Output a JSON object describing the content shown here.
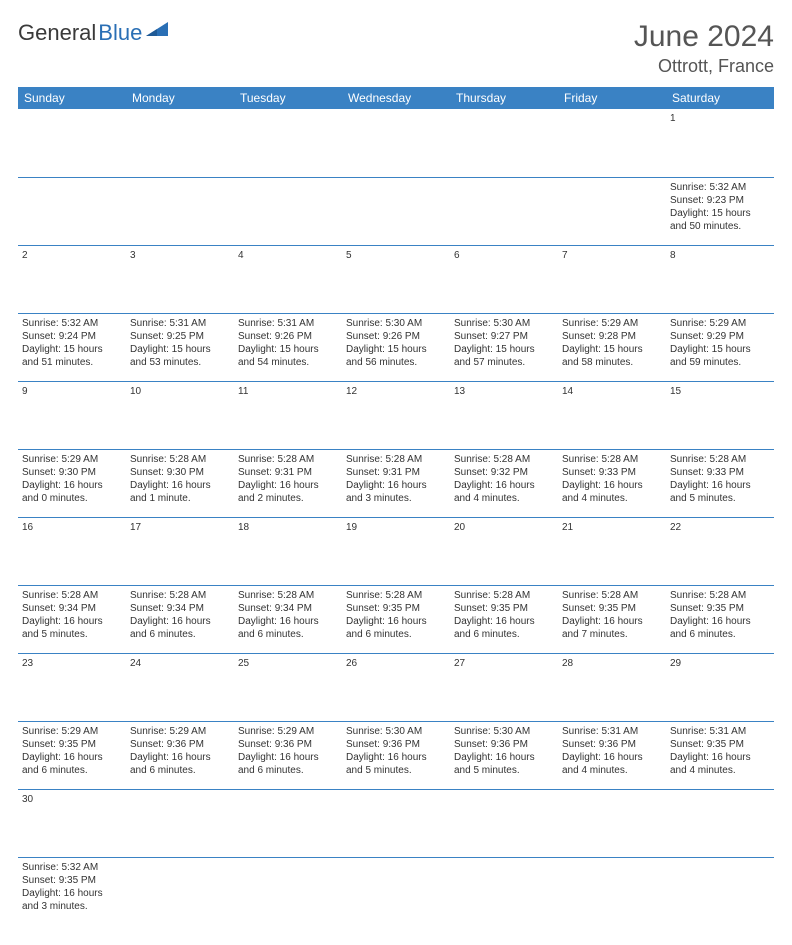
{
  "brand": {
    "part1": "General",
    "part2": "Blue"
  },
  "title": "June 2024",
  "location": "Ottrott, France",
  "colors": {
    "header_bg": "#3a82c4",
    "header_text": "#ffffff",
    "daynum_bg": "#ebebeb",
    "cell_border": "#3a82c4",
    "brand_blue": "#2a6fb5",
    "text": "#333333"
  },
  "weekdays": [
    "Sunday",
    "Monday",
    "Tuesday",
    "Wednesday",
    "Thursday",
    "Friday",
    "Saturday"
  ],
  "weeks": [
    [
      null,
      null,
      null,
      null,
      null,
      null,
      {
        "n": "1",
        "sr": "Sunrise: 5:32 AM",
        "ss": "Sunset: 9:23 PM",
        "dl": "Daylight: 15 hours and 50 minutes."
      }
    ],
    [
      {
        "n": "2",
        "sr": "Sunrise: 5:32 AM",
        "ss": "Sunset: 9:24 PM",
        "dl": "Daylight: 15 hours and 51 minutes."
      },
      {
        "n": "3",
        "sr": "Sunrise: 5:31 AM",
        "ss": "Sunset: 9:25 PM",
        "dl": "Daylight: 15 hours and 53 minutes."
      },
      {
        "n": "4",
        "sr": "Sunrise: 5:31 AM",
        "ss": "Sunset: 9:26 PM",
        "dl": "Daylight: 15 hours and 54 minutes."
      },
      {
        "n": "5",
        "sr": "Sunrise: 5:30 AM",
        "ss": "Sunset: 9:26 PM",
        "dl": "Daylight: 15 hours and 56 minutes."
      },
      {
        "n": "6",
        "sr": "Sunrise: 5:30 AM",
        "ss": "Sunset: 9:27 PM",
        "dl": "Daylight: 15 hours and 57 minutes."
      },
      {
        "n": "7",
        "sr": "Sunrise: 5:29 AM",
        "ss": "Sunset: 9:28 PM",
        "dl": "Daylight: 15 hours and 58 minutes."
      },
      {
        "n": "8",
        "sr": "Sunrise: 5:29 AM",
        "ss": "Sunset: 9:29 PM",
        "dl": "Daylight: 15 hours and 59 minutes."
      }
    ],
    [
      {
        "n": "9",
        "sr": "Sunrise: 5:29 AM",
        "ss": "Sunset: 9:30 PM",
        "dl": "Daylight: 16 hours and 0 minutes."
      },
      {
        "n": "10",
        "sr": "Sunrise: 5:28 AM",
        "ss": "Sunset: 9:30 PM",
        "dl": "Daylight: 16 hours and 1 minute."
      },
      {
        "n": "11",
        "sr": "Sunrise: 5:28 AM",
        "ss": "Sunset: 9:31 PM",
        "dl": "Daylight: 16 hours and 2 minutes."
      },
      {
        "n": "12",
        "sr": "Sunrise: 5:28 AM",
        "ss": "Sunset: 9:31 PM",
        "dl": "Daylight: 16 hours and 3 minutes."
      },
      {
        "n": "13",
        "sr": "Sunrise: 5:28 AM",
        "ss": "Sunset: 9:32 PM",
        "dl": "Daylight: 16 hours and 4 minutes."
      },
      {
        "n": "14",
        "sr": "Sunrise: 5:28 AM",
        "ss": "Sunset: 9:33 PM",
        "dl": "Daylight: 16 hours and 4 minutes."
      },
      {
        "n": "15",
        "sr": "Sunrise: 5:28 AM",
        "ss": "Sunset: 9:33 PM",
        "dl": "Daylight: 16 hours and 5 minutes."
      }
    ],
    [
      {
        "n": "16",
        "sr": "Sunrise: 5:28 AM",
        "ss": "Sunset: 9:34 PM",
        "dl": "Daylight: 16 hours and 5 minutes."
      },
      {
        "n": "17",
        "sr": "Sunrise: 5:28 AM",
        "ss": "Sunset: 9:34 PM",
        "dl": "Daylight: 16 hours and 6 minutes."
      },
      {
        "n": "18",
        "sr": "Sunrise: 5:28 AM",
        "ss": "Sunset: 9:34 PM",
        "dl": "Daylight: 16 hours and 6 minutes."
      },
      {
        "n": "19",
        "sr": "Sunrise: 5:28 AM",
        "ss": "Sunset: 9:35 PM",
        "dl": "Daylight: 16 hours and 6 minutes."
      },
      {
        "n": "20",
        "sr": "Sunrise: 5:28 AM",
        "ss": "Sunset: 9:35 PM",
        "dl": "Daylight: 16 hours and 6 minutes."
      },
      {
        "n": "21",
        "sr": "Sunrise: 5:28 AM",
        "ss": "Sunset: 9:35 PM",
        "dl": "Daylight: 16 hours and 7 minutes."
      },
      {
        "n": "22",
        "sr": "Sunrise: 5:28 AM",
        "ss": "Sunset: 9:35 PM",
        "dl": "Daylight: 16 hours and 6 minutes."
      }
    ],
    [
      {
        "n": "23",
        "sr": "Sunrise: 5:29 AM",
        "ss": "Sunset: 9:35 PM",
        "dl": "Daylight: 16 hours and 6 minutes."
      },
      {
        "n": "24",
        "sr": "Sunrise: 5:29 AM",
        "ss": "Sunset: 9:36 PM",
        "dl": "Daylight: 16 hours and 6 minutes."
      },
      {
        "n": "25",
        "sr": "Sunrise: 5:29 AM",
        "ss": "Sunset: 9:36 PM",
        "dl": "Daylight: 16 hours and 6 minutes."
      },
      {
        "n": "26",
        "sr": "Sunrise: 5:30 AM",
        "ss": "Sunset: 9:36 PM",
        "dl": "Daylight: 16 hours and 5 minutes."
      },
      {
        "n": "27",
        "sr": "Sunrise: 5:30 AM",
        "ss": "Sunset: 9:36 PM",
        "dl": "Daylight: 16 hours and 5 minutes."
      },
      {
        "n": "28",
        "sr": "Sunrise: 5:31 AM",
        "ss": "Sunset: 9:36 PM",
        "dl": "Daylight: 16 hours and 4 minutes."
      },
      {
        "n": "29",
        "sr": "Sunrise: 5:31 AM",
        "ss": "Sunset: 9:35 PM",
        "dl": "Daylight: 16 hours and 4 minutes."
      }
    ],
    [
      {
        "n": "30",
        "sr": "Sunrise: 5:32 AM",
        "ss": "Sunset: 9:35 PM",
        "dl": "Daylight: 16 hours and 3 minutes."
      },
      null,
      null,
      null,
      null,
      null,
      null
    ]
  ]
}
